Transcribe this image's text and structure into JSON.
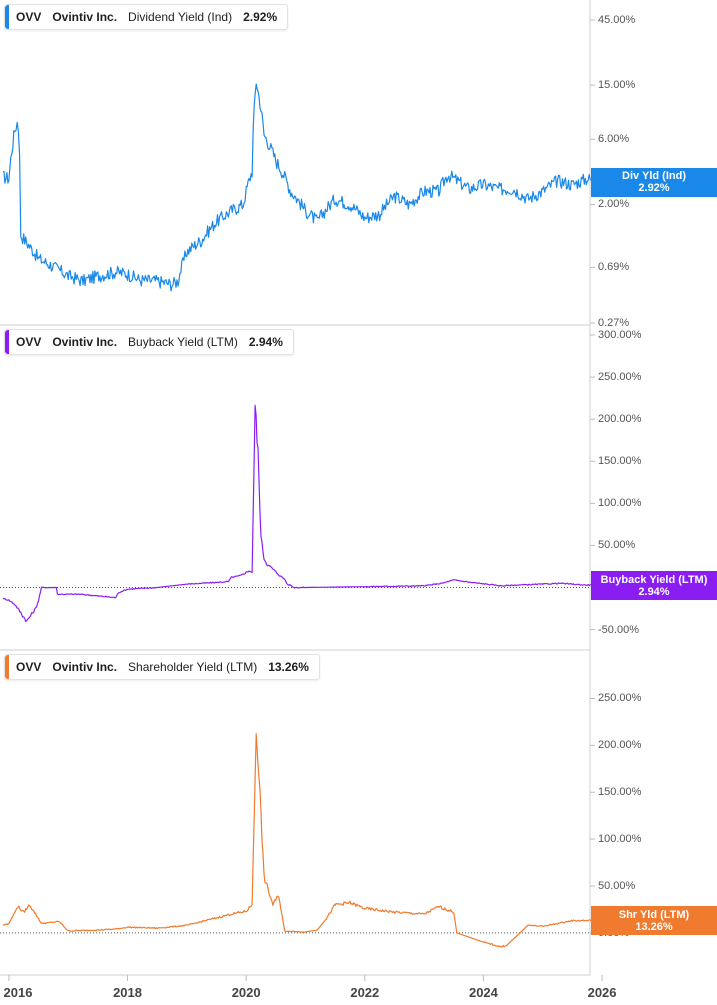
{
  "chart_data": [
    {
      "type": "line",
      "ticker": "OVV",
      "company": "Ovintiv Inc.",
      "metric": "Dividend Yield (Ind)",
      "current_value": "2.92%",
      "badge_label": "Div Yld (Ind)",
      "badge_value": "2.92%",
      "color": "#1a88e8",
      "scale": "log",
      "ylim": [
        0.27,
        45
      ],
      "yticks": [
        {
          "v": 45,
          "l": "45.00%"
        },
        {
          "v": 15,
          "l": "15.00%"
        },
        {
          "v": 6,
          "l": "6.00%"
        },
        {
          "v": 2,
          "l": "2.00%"
        },
        {
          "v": 0.69,
          "l": "0.69%"
        },
        {
          "v": 0.27,
          "l": "0.27%"
        }
      ],
      "x": [
        2015.9,
        2016.0,
        2016.05,
        2016.1,
        2016.14,
        2016.16,
        2016.2,
        2016.3,
        2016.5,
        2016.75,
        2017.0,
        2017.25,
        2017.5,
        2017.8,
        2018.0,
        2018.2,
        2018.5,
        2018.75,
        2018.85,
        2019.0,
        2019.25,
        2019.5,
        2019.75,
        2019.95,
        2020.1,
        2020.17,
        2020.2,
        2020.3,
        2020.5,
        2020.75,
        2021.0,
        2021.2,
        2021.5,
        2021.75,
        2022.0,
        2022.25,
        2022.5,
        2022.75,
        2023.0,
        2023.25,
        2023.4,
        2023.75,
        2024.0,
        2024.25,
        2024.5,
        2024.75,
        2025.0,
        2025.25,
        2025.5,
        2025.75,
        2025.95
      ],
      "values": [
        3.2,
        3.1,
        5.0,
        7.0,
        8.0,
        7.5,
        1.2,
        1.05,
        0.8,
        0.7,
        0.6,
        0.55,
        0.6,
        0.64,
        0.62,
        0.56,
        0.55,
        0.52,
        0.55,
        0.9,
        1.1,
        1.5,
        1.8,
        2.0,
        3.5,
        16.0,
        13.5,
        6.5,
        4.2,
        2.5,
        1.8,
        1.5,
        2.2,
        2.0,
        1.6,
        1.7,
        2.3,
        2.0,
        2.5,
        2.5,
        3.3,
        2.6,
        2.8,
        2.6,
        2.6,
        2.2,
        2.5,
        3.0,
        2.8,
        3.1,
        2.92
      ]
    },
    {
      "type": "line",
      "ticker": "OVV",
      "company": "Ovintiv Inc.",
      "metric": "Buyback Yield (LTM)",
      "current_value": "2.94%",
      "badge_label": "Buyback Yield (LTM)",
      "badge_value": "2.94%",
      "color": "#8a1ef2",
      "scale": "linear",
      "ylim": [
        -60,
        300
      ],
      "yticks": [
        {
          "v": 300,
          "l": "300.00%"
        },
        {
          "v": 250,
          "l": "250.00%"
        },
        {
          "v": 200,
          "l": "200.00%"
        },
        {
          "v": 150,
          "l": "150.00%"
        },
        {
          "v": 100,
          "l": "100.00%"
        },
        {
          "v": 50,
          "l": "50.00%"
        },
        {
          "v": -50,
          "l": "-50.00%"
        }
      ],
      "x": [
        2015.9,
        2016.0,
        2016.1,
        2016.2,
        2016.3,
        2016.45,
        2016.5,
        2016.55,
        2016.8,
        2016.82,
        2017.2,
        2017.5,
        2017.8,
        2017.85,
        2018.0,
        2018.5,
        2019.0,
        2019.5,
        2019.7,
        2019.75,
        2019.9,
        2020.05,
        2020.1,
        2020.15,
        2020.2,
        2020.25,
        2020.3,
        2020.35,
        2020.45,
        2020.55,
        2020.65,
        2020.7,
        2020.75,
        2020.8,
        2021.0,
        2022.0,
        2023.0,
        2023.3,
        2023.5,
        2023.8,
        2024.3,
        2024.6,
        2025.0,
        2025.3,
        2025.5,
        2025.7,
        2025.95
      ],
      "values": [
        -13,
        -15,
        -20,
        -30,
        -40,
        -25,
        -15,
        0,
        0,
        -8,
        -8,
        -10,
        -12,
        -6,
        -2,
        0,
        4,
        6,
        7,
        12,
        14,
        20,
        18,
        215,
        160,
        60,
        35,
        28,
        22,
        15,
        10,
        3,
        3,
        0,
        0,
        1,
        2,
        5,
        9,
        6,
        2,
        3,
        4,
        5,
        4,
        3,
        2.94
      ]
    },
    {
      "type": "line",
      "ticker": "OVV",
      "company": "Ovintiv Inc.",
      "metric": "Shareholder Yield (LTM)",
      "current_value": "13.26%",
      "badge_label": "Shr Yld (LTM)",
      "badge_value": "13.26%",
      "color": "#f07a2e",
      "scale": "linear",
      "ylim": [
        -45,
        290
      ],
      "yticks": [
        {
          "v": 250,
          "l": "250.00%"
        },
        {
          "v": 200,
          "l": "200.00%"
        },
        {
          "v": 150,
          "l": "150.00%"
        },
        {
          "v": 100,
          "l": "100.00%"
        },
        {
          "v": 50,
          "l": "50.00%"
        },
        {
          "v": 0,
          "l": "0.00%"
        }
      ],
      "x": [
        2015.9,
        2016.0,
        2016.15,
        2016.25,
        2016.35,
        2016.5,
        2016.55,
        2016.85,
        2017.0,
        2017.5,
        2017.8,
        2018.0,
        2018.5,
        2019.0,
        2019.5,
        2019.75,
        2020.0,
        2020.1,
        2020.17,
        2020.2,
        2020.3,
        2020.45,
        2020.55,
        2020.6,
        2020.65,
        2021.0,
        2021.2,
        2021.35,
        2021.5,
        2021.75,
        2022.0,
        2022.5,
        2023.0,
        2023.25,
        2023.5,
        2023.55,
        2024.0,
        2024.3,
        2024.4,
        2024.75,
        2025.0,
        2025.5,
        2025.95
      ],
      "values": [
        8,
        10,
        28,
        22,
        30,
        15,
        10,
        12,
        2,
        3,
        4,
        6,
        5,
        8,
        16,
        20,
        23,
        30,
        215,
        190,
        60,
        30,
        40,
        20,
        2,
        1,
        3,
        15,
        30,
        32,
        26,
        22,
        20,
        28,
        22,
        0,
        -10,
        -15,
        -13,
        8,
        7,
        13,
        13.26
      ]
    }
  ],
  "x_axis": {
    "ticks": [
      {
        "v": 2016,
        "l": "2016"
      },
      {
        "v": 2018,
        "l": "2018"
      },
      {
        "v": 2020,
        "l": "2020"
      },
      {
        "v": 2022,
        "l": "2022"
      },
      {
        "v": 2024,
        "l": "2024"
      },
      {
        "v": 2026,
        "l": "2026"
      }
    ]
  }
}
